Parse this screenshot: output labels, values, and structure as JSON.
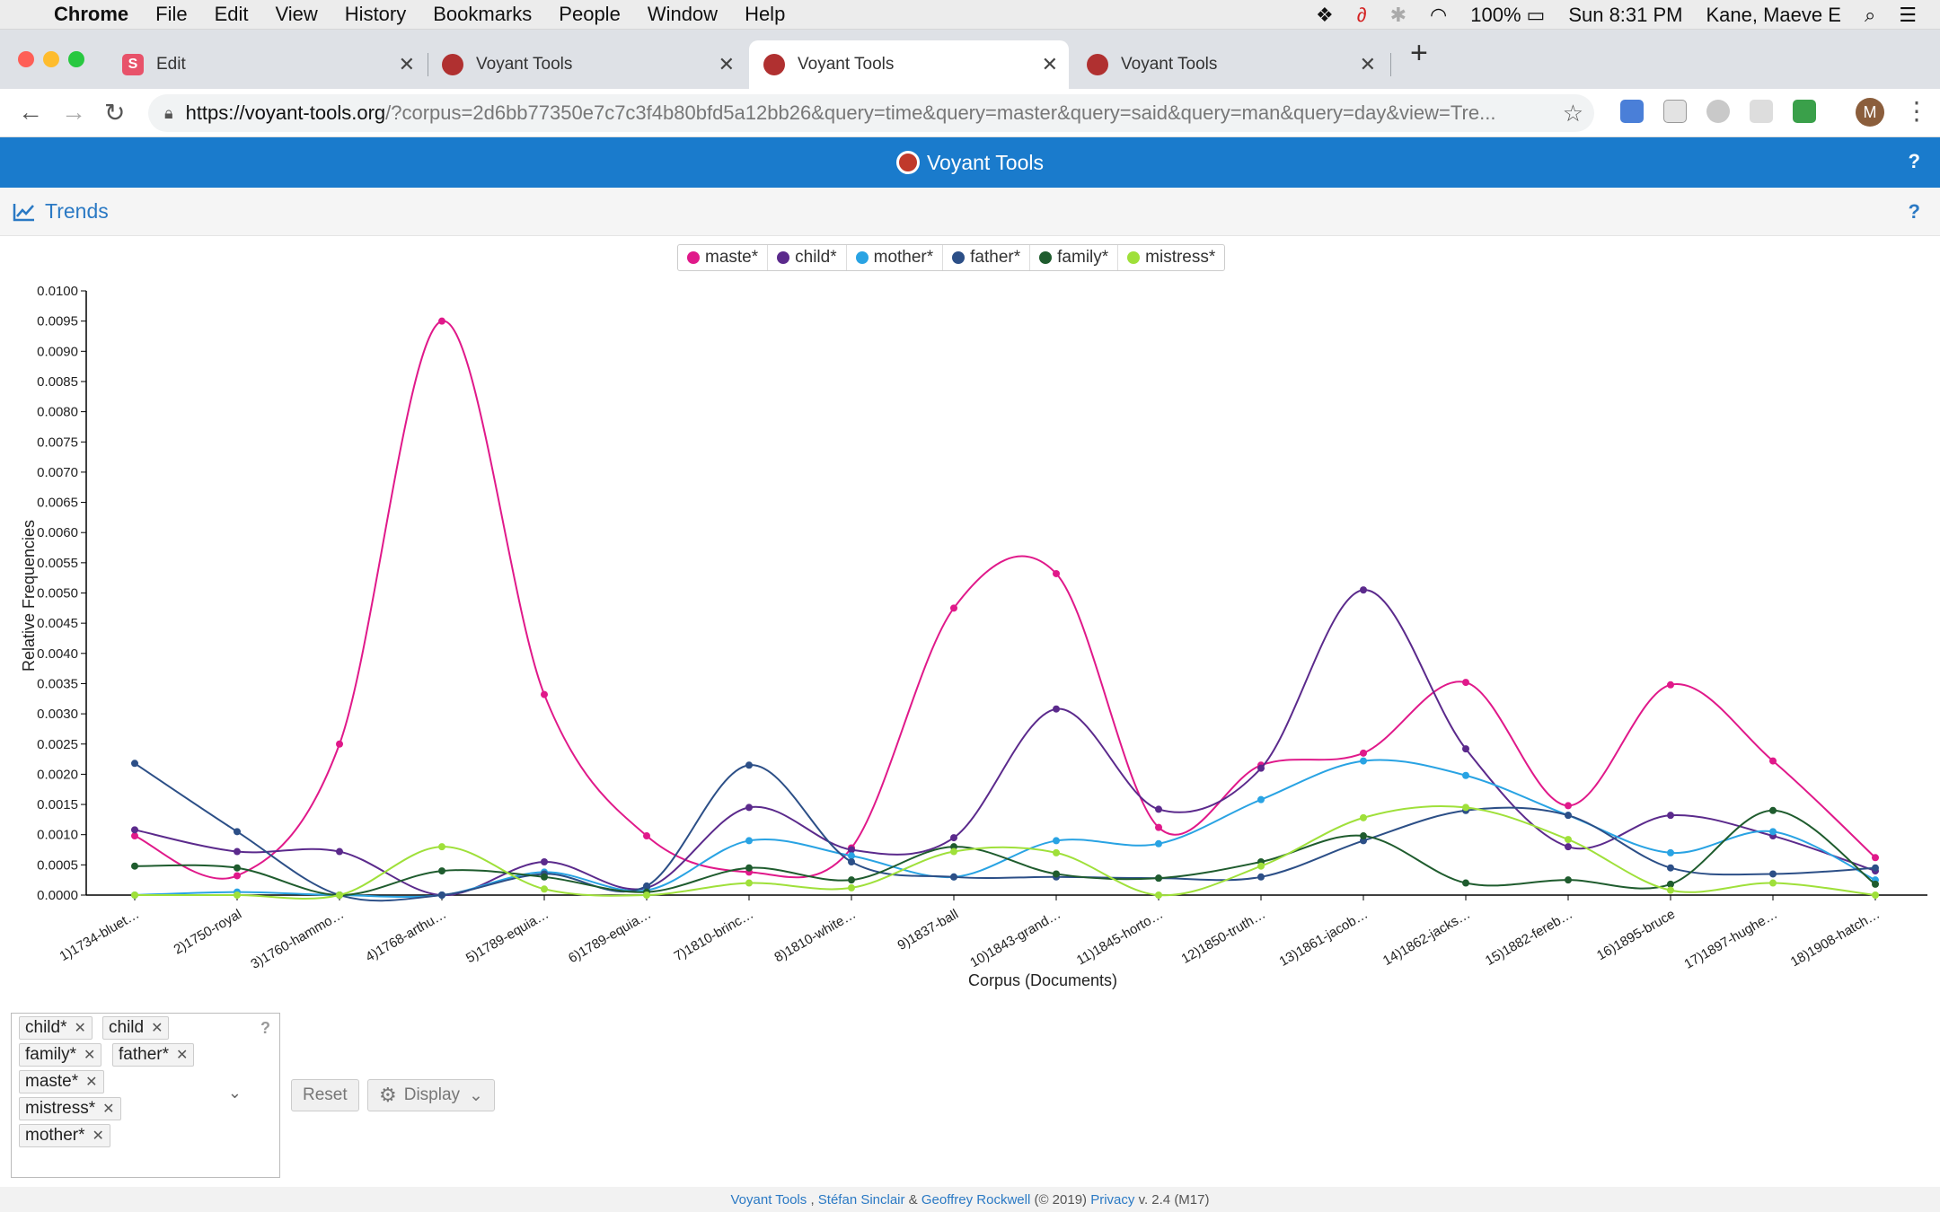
{
  "menubar": {
    "app": "Chrome",
    "items": [
      "File",
      "Edit",
      "View",
      "History",
      "Bookmarks",
      "People",
      "Window",
      "Help"
    ],
    "battery": "100%",
    "clock": "Sun 8:31 PM",
    "user": "Kane, Maeve E"
  },
  "tabs": [
    {
      "label": "Edit",
      "icon": "s-icon"
    },
    {
      "label": "Voyant Tools",
      "icon": "voyant-icon"
    },
    {
      "label": "Voyant Tools",
      "icon": "voyant-icon"
    },
    {
      "label": "Voyant Tools",
      "icon": "voyant-icon"
    }
  ],
  "address": {
    "host": "https://voyant-tools.org",
    "path": "/?corpus=2d6bb77350e7c7c3f4b80bfd5a12bb26&query=time&query=master&query=said&query=man&query=day&view=Tre..."
  },
  "profile_initial": "M",
  "voyant": {
    "title": "Voyant Tools",
    "help": "?"
  },
  "panel": {
    "title": "Trends",
    "help": "?"
  },
  "legend": [
    {
      "label": "maste*",
      "color": "#e0198a"
    },
    {
      "label": "child*",
      "color": "#5b2a8c"
    },
    {
      "label": "mother*",
      "color": "#29a3e3"
    },
    {
      "label": "father*",
      "color": "#2c4f87"
    },
    {
      "label": "family*",
      "color": "#1f5c2e"
    },
    {
      "label": "mistress*",
      "color": "#9fe03a"
    }
  ],
  "chart_data": {
    "type": "line",
    "xlabel": "Corpus (Documents)",
    "ylabel": "Relative Frequencies",
    "ylim": [
      0,
      0.01
    ],
    "yticks": [
      "0.0000",
      "0.0005",
      "0.0010",
      "0.0015",
      "0.0020",
      "0.0025",
      "0.0030",
      "0.0035",
      "0.0040",
      "0.0045",
      "0.0050",
      "0.0055",
      "0.0060",
      "0.0065",
      "0.0070",
      "0.0075",
      "0.0080",
      "0.0085",
      "0.0090",
      "0.0095",
      "0.0100"
    ],
    "categories": [
      "1)1734-bluet…",
      "2)1750-royal",
      "3)1760-hammo…",
      "4)1768-arthu…",
      "5)1789-equia…",
      "6)1789-equia…",
      "7)1810-brinc…",
      "8)1810-white…",
      "9)1837-ball",
      "10)1843-grand…",
      "11)1845-horto…",
      "12)1850-truth…",
      "13)1861-jacob…",
      "14)1862-jacks…",
      "15)1882-fereb…",
      "16)1895-bruce",
      "17)1897-hughe…",
      "18)1908-hatch…"
    ],
    "series": [
      {
        "name": "maste*",
        "color": "#e0198a",
        "values": [
          0.00098,
          0.00032,
          0.0025,
          0.0095,
          0.00332,
          0.00098,
          0.00038,
          0.00078,
          0.00475,
          0.00532,
          0.00112,
          0.00215,
          0.00235,
          0.00352,
          0.00148,
          0.00348,
          0.00222,
          0.00062
        ]
      },
      {
        "name": "child*",
        "color": "#5b2a8c",
        "values": [
          0.00108,
          0.00072,
          0.00072,
          0.0,
          0.00055,
          0.00012,
          0.00145,
          0.00075,
          0.00095,
          0.00308,
          0.00142,
          0.0021,
          0.00505,
          0.00242,
          0.0008,
          0.00132,
          0.00098,
          0.0004
        ]
      },
      {
        "name": "mother*",
        "color": "#29a3e3",
        "values": [
          0.0,
          5e-05,
          0.0,
          0.0,
          0.00038,
          8e-05,
          0.0009,
          0.00065,
          0.0003,
          0.0009,
          0.00085,
          0.00158,
          0.00222,
          0.00198,
          0.00132,
          0.0007,
          0.00105,
          0.00025
        ]
      },
      {
        "name": "father*",
        "color": "#2c4f87",
        "values": [
          0.00218,
          0.00105,
          0.0,
          0.0,
          0.00035,
          0.00015,
          0.00215,
          0.00055,
          0.0003,
          0.0003,
          0.00028,
          0.0003,
          0.0009,
          0.0014,
          0.00132,
          0.00045,
          0.00035,
          0.00045
        ]
      },
      {
        "name": "family*",
        "color": "#1f5c2e",
        "values": [
          0.00048,
          0.00045,
          0.0,
          0.0004,
          0.0003,
          5e-05,
          0.00045,
          0.00025,
          0.0008,
          0.00035,
          0.00028,
          0.00055,
          0.00098,
          0.0002,
          0.00025,
          0.00018,
          0.0014,
          0.00018
        ]
      },
      {
        "name": "mistress*",
        "color": "#9fe03a",
        "values": [
          0.0,
          0.0,
          0.0,
          0.0008,
          0.0001,
          0.0,
          0.0002,
          0.00012,
          0.00072,
          0.0007,
          0.0,
          0.00048,
          0.00128,
          0.00145,
          0.00092,
          8e-05,
          0.0002,
          0.0
        ]
      }
    ]
  },
  "query_tags": [
    "child*",
    "child",
    "family*",
    "father*",
    "maste*",
    "mistress*",
    "mother*"
  ],
  "tags_help": "?",
  "buttons": {
    "reset": "Reset",
    "display": "Display"
  },
  "footer": {
    "voyant": "Voyant Tools",
    "sep1": " , ",
    "author1": "Stéfan Sinclair",
    "amp": " & ",
    "author2": "Geoffrey Rockwell",
    "year": " (© 2019) ",
    "privacy": "Privacy",
    "version": " v. 2.4 (M17)"
  }
}
